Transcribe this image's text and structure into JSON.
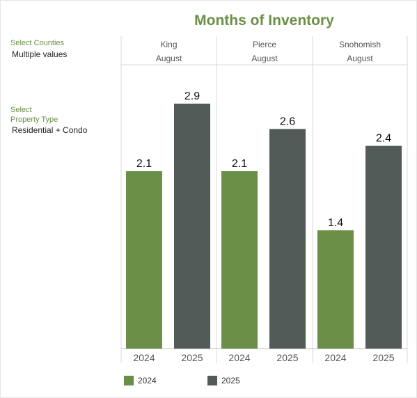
{
  "title": "Months of Inventory",
  "filters": {
    "counties_label": "Select Counties",
    "counties_value": "Multiple values",
    "property_label_line1": "Select",
    "property_label_line2": "Property Type",
    "property_value": "Residential + Condo"
  },
  "colors": {
    "2024": "#6b8f47",
    "2025": "#525b58"
  },
  "chart_data": {
    "type": "bar",
    "title": "Months of Inventory",
    "panels": [
      {
        "county": "King",
        "month": "August",
        "values": [
          2.1,
          2.9
        ]
      },
      {
        "county": "Pierce",
        "month": "August",
        "values": [
          2.1,
          2.6
        ]
      },
      {
        "county": "Snohomish",
        "month": "August",
        "values": [
          1.4,
          2.4
        ]
      }
    ],
    "series": [
      {
        "name": "2024"
      },
      {
        "name": "2025"
      }
    ],
    "categories": [
      "2024",
      "2025"
    ],
    "ylim": [
      0,
      3.3
    ],
    "grid": false,
    "legend": "bottom"
  },
  "legend": [
    {
      "label": "2024"
    },
    {
      "label": "2025"
    }
  ]
}
